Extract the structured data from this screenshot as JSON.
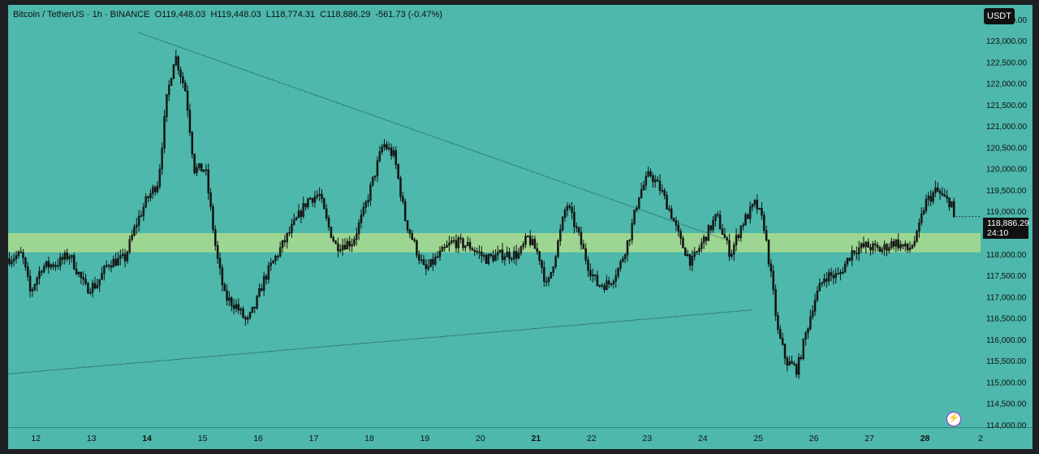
{
  "legend": {
    "symbol": "Bitcoin / TetherUS · 1h · BINANCE",
    "open": "O119,448.03",
    "high": "H119,448.03",
    "low": "L118,774.31",
    "close": "C118,886.29",
    "change": "-561.73 (-0.47%)"
  },
  "currency_button": "USDT",
  "last_price": {
    "value": "118,886.29",
    "countdown": "24:10",
    "price": 118886.29
  },
  "colors": {
    "background": "#4db8ab",
    "candle": "#111111",
    "zone": "#b8e08a",
    "axis_panel": "#1e1f22",
    "accent_icon": "#9b2fd1"
  },
  "icons": {
    "bottom_right": "lightning-bolt-icon"
  },
  "chart_data": {
    "type": "candlestick",
    "symbol": "Bitcoin / TetherUS",
    "interval": "1h",
    "exchange": "BINANCE",
    "x_ticks": [
      "12",
      "13",
      "14",
      "15",
      "16",
      "17",
      "18",
      "19",
      "20",
      "21",
      "22",
      "23",
      "24",
      "25",
      "26",
      "27",
      "28",
      "2"
    ],
    "y_ticks": [
      114000,
      114500,
      115000,
      115500,
      116000,
      116500,
      117000,
      117500,
      118000,
      118500,
      119000,
      119500,
      120000,
      120500,
      121000,
      121500,
      122000,
      122500,
      123000,
      123500
    ],
    "y_tick_labels": [
      "114,000.00",
      "114,500.00",
      "115,000.00",
      "115,500.00",
      "116,000.00",
      "116,500.00",
      "117,000.00",
      "117,500.00",
      "118,000.00",
      "118,500.00",
      "119,000.00",
      "119,500.00",
      "120,000.00",
      "120,500.00",
      "121,000.00",
      "121,500.00",
      "122,000.00",
      "122,500.00",
      "123,000.00",
      "123,500.00"
    ],
    "ylim": [
      113950,
      123850
    ],
    "x_range_days": [
      11.5,
      29.0
    ],
    "grid": false,
    "zone": {
      "low": 118050,
      "high": 118500
    },
    "trendlines": [
      {
        "name": "descending",
        "style": "dotted",
        "points": [
          {
            "day": 13.85,
            "price": 123200
          },
          {
            "day": 24.4,
            "price": 118350
          }
        ]
      },
      {
        "name": "ascending",
        "style": "dotted",
        "points": [
          {
            "day": 11.5,
            "price": 115200
          },
          {
            "day": 24.9,
            "price": 116700
          }
        ]
      }
    ],
    "path_points": [
      [
        11.5,
        117900
      ],
      [
        11.75,
        118000
      ],
      [
        11.9,
        117100
      ],
      [
        12.1,
        117700
      ],
      [
        12.4,
        117800
      ],
      [
        12.6,
        118000
      ],
      [
        12.9,
        117200
      ],
      [
        13.1,
        117300
      ],
      [
        13.3,
        117800
      ],
      [
        13.6,
        117900
      ],
      [
        13.8,
        118700
      ],
      [
        14.0,
        119300
      ],
      [
        14.2,
        119700
      ],
      [
        14.35,
        121600
      ],
      [
        14.5,
        122700
      ],
      [
        14.7,
        121800
      ],
      [
        14.85,
        120000
      ],
      [
        15.05,
        120000
      ],
      [
        15.25,
        118000
      ],
      [
        15.4,
        117000
      ],
      [
        15.6,
        116800
      ],
      [
        15.8,
        116400
      ],
      [
        15.95,
        116800
      ],
      [
        16.1,
        117400
      ],
      [
        16.3,
        117900
      ],
      [
        16.6,
        118600
      ],
      [
        16.9,
        119300
      ],
      [
        17.1,
        119400
      ],
      [
        17.25,
        118700
      ],
      [
        17.4,
        118200
      ],
      [
        17.7,
        118300
      ],
      [
        17.9,
        119000
      ],
      [
        18.1,
        119900
      ],
      [
        18.25,
        120600
      ],
      [
        18.45,
        120300
      ],
      [
        18.65,
        118800
      ],
      [
        18.85,
        118100
      ],
      [
        19.0,
        117600
      ],
      [
        19.2,
        117900
      ],
      [
        19.5,
        118300
      ],
      [
        19.8,
        118200
      ],
      [
        20.1,
        117900
      ],
      [
        20.4,
        118000
      ],
      [
        20.7,
        118000
      ],
      [
        20.85,
        118400
      ],
      [
        21.05,
        118000
      ],
      [
        21.2,
        117200
      ],
      [
        21.4,
        118300
      ],
      [
        21.55,
        119200
      ],
      [
        21.75,
        118500
      ],
      [
        21.95,
        117700
      ],
      [
        22.1,
        117300
      ],
      [
        22.3,
        117300
      ],
      [
        22.5,
        117700
      ],
      [
        22.7,
        118500
      ],
      [
        22.85,
        119400
      ],
      [
        23.05,
        119900
      ],
      [
        23.25,
        119500
      ],
      [
        23.45,
        118900
      ],
      [
        23.6,
        118300
      ],
      [
        23.8,
        117800
      ],
      [
        24.0,
        118300
      ],
      [
        24.25,
        118900
      ],
      [
        24.5,
        118000
      ],
      [
        24.7,
        118700
      ],
      [
        24.95,
        119200
      ],
      [
        25.1,
        118700
      ],
      [
        25.25,
        117300
      ],
      [
        25.35,
        116200
      ],
      [
        25.5,
        115500
      ],
      [
        25.7,
        115300
      ],
      [
        25.85,
        116100
      ],
      [
        26.0,
        116900
      ],
      [
        26.2,
        117500
      ],
      [
        26.45,
        117500
      ],
      [
        26.7,
        118100
      ],
      [
        26.95,
        118200
      ],
      [
        27.2,
        118100
      ],
      [
        27.45,
        118300
      ],
      [
        27.7,
        118100
      ],
      [
        27.85,
        118400
      ],
      [
        28.0,
        119200
      ],
      [
        28.2,
        119500
      ],
      [
        28.35,
        119300
      ],
      [
        28.5,
        119200
      ],
      [
        28.55,
        118886
      ]
    ]
  }
}
